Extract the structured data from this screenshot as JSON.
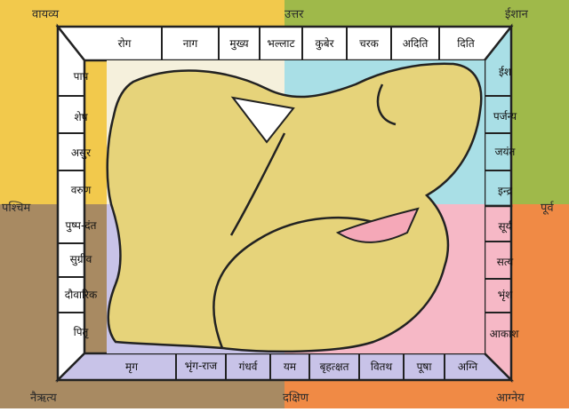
{
  "directions": {
    "north": "उत्तर",
    "south": "दक्षिण",
    "east": "पूर्व",
    "west": "पश्चिम",
    "northeast": "ईशान",
    "northwest": "वायव्य",
    "southeast": "आग्नेय",
    "southwest": "नैऋत्य"
  },
  "deities": {
    "top": [
      "रोग",
      "नाग",
      "मुख्य",
      "भल्लाट",
      "कुबेर",
      "चरक",
      "अदिति",
      "दिति"
    ],
    "right": [
      "ईश",
      "पर्जन्य",
      "जयंत",
      "इन्द्र",
      "सूर्य",
      "सत्य",
      "भृंश",
      "आकाश"
    ],
    "bottom": [
      "मृग",
      "भृंग-राज",
      "गंधर्व",
      "यम",
      "बृहत्क्षत",
      "वितथ",
      "पूषा",
      "अग्नि"
    ],
    "left": [
      "पाप",
      "शेष",
      "असुर",
      "वरुण",
      "पुष्प-दंत",
      "सुग्रीव",
      "दौवारिक",
      "पितृ"
    ]
  },
  "colors": {
    "northwest_quadrant": "#f2c94c",
    "northeast_quadrant": "#9fb94a",
    "southwest_quadrant": "#a88a62",
    "southeast_quadrant": "#f08a45",
    "frame_top": "#ffffff",
    "frame_left": "#ffffff",
    "frame_right_upper": "#a9dfe6",
    "frame_right_lower": "#f6b8c6",
    "frame_bottom": "#c8c3e8",
    "figure_body": "#e6d37a",
    "figure_shadow": "#f5a8b8"
  }
}
